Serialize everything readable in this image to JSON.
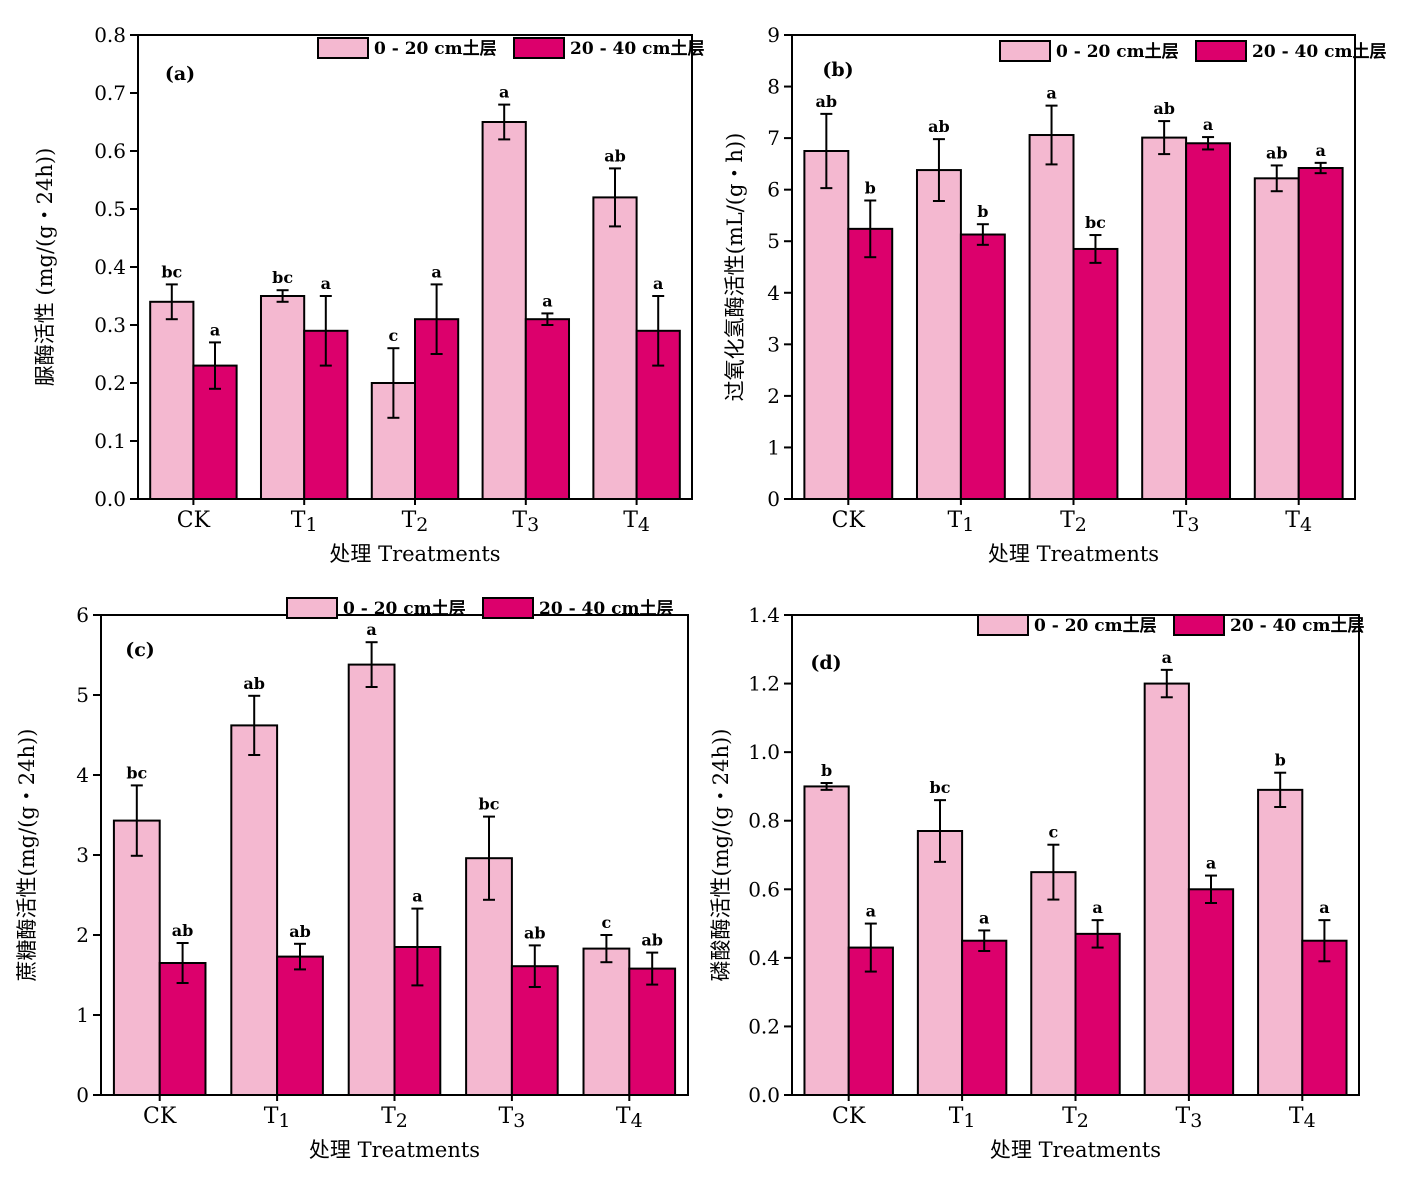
{
  "colors": {
    "series_0_20": "#F4B8D0",
    "series_20_40": "#DC006C"
  },
  "chart_data": [
    {
      "type": "bar",
      "panel_label": "(a)",
      "categories": [
        "CK",
        "T1",
        "T2",
        "T3",
        "T4"
      ],
      "xlabel": "处理  Treatments",
      "ylabel": "脲酶活性 (mg/(g・24h))",
      "ylim": [
        0,
        0.8
      ],
      "yticks": [
        "0.0",
        "0.1",
        "0.2",
        "0.3",
        "0.4",
        "0.5",
        "0.6",
        "0.7",
        "0.8"
      ],
      "legend_position": "top-right",
      "series": [
        {
          "name": "0 - 20 cm土层",
          "values": [
            0.34,
            0.35,
            0.2,
            0.65,
            0.52
          ],
          "errors": [
            0.03,
            0.01,
            0.06,
            0.03,
            0.05
          ],
          "labels": [
            "bc",
            "bc",
            "c",
            "a",
            "ab"
          ]
        },
        {
          "name": "20 - 40 cm土层",
          "values": [
            0.23,
            0.29,
            0.31,
            0.31,
            0.29
          ],
          "errors": [
            0.04,
            0.06,
            0.06,
            0.01,
            0.06
          ],
          "labels": [
            "a",
            "a",
            "a",
            "a",
            "a"
          ]
        }
      ]
    },
    {
      "type": "bar",
      "panel_label": "(b)",
      "categories": [
        "CK",
        "T1",
        "T2",
        "T3",
        "T4"
      ],
      "xlabel": "处理  Treatments",
      "ylabel": "过氧化氢酶活性(mL/(g・h))",
      "ylim": [
        0,
        9
      ],
      "yticks": [
        "0",
        "1",
        "2",
        "3",
        "4",
        "5",
        "6",
        "7",
        "8",
        "9"
      ],
      "legend_position": "top-right",
      "series": [
        {
          "name": "0 - 20 cm土层",
          "values": [
            6.75,
            6.38,
            7.06,
            7.01,
            6.22
          ],
          "errors": [
            0.72,
            0.6,
            0.57,
            0.32,
            0.25
          ],
          "labels": [
            "ab",
            "ab",
            "a",
            "ab",
            "ab"
          ]
        },
        {
          "name": "20 - 40 cm土层",
          "values": [
            5.24,
            5.13,
            4.85,
            6.9,
            6.42
          ],
          "errors": [
            0.55,
            0.2,
            0.27,
            0.12,
            0.1
          ],
          "labels": [
            "b",
            "b",
            "bc",
            "a",
            "a"
          ]
        }
      ]
    },
    {
      "type": "bar",
      "panel_label": "(c)",
      "categories": [
        "CK",
        "T1",
        "T2",
        "T3",
        "T4"
      ],
      "xlabel": "处理  Treatments",
      "ylabel": "蔗糖酶活性(mg/(g・24h))",
      "ylim": [
        0,
        6
      ],
      "yticks": [
        "0",
        "1",
        "2",
        "3",
        "4",
        "5",
        "6"
      ],
      "legend_position": "top-right",
      "series": [
        {
          "name": "0 - 20 cm土层",
          "values": [
            3.43,
            4.62,
            5.38,
            2.96,
            1.83
          ],
          "errors": [
            0.44,
            0.37,
            0.28,
            0.52,
            0.17
          ],
          "labels": [
            "bc",
            "ab",
            "a",
            "bc",
            "c"
          ]
        },
        {
          "name": "20 - 40 cm土层",
          "values": [
            1.65,
            1.73,
            1.85,
            1.61,
            1.58
          ],
          "errors": [
            0.25,
            0.16,
            0.48,
            0.26,
            0.2
          ],
          "labels": [
            "ab",
            "ab",
            "a",
            "ab",
            "ab"
          ]
        }
      ]
    },
    {
      "type": "bar",
      "panel_label": "(d)",
      "categories": [
        "CK",
        "T1",
        "T2",
        "T3",
        "T4"
      ],
      "xlabel": "处理  Treatments",
      "ylabel": "磷酸酶活性(mg/(g・24h))",
      "ylim": [
        0,
        1.4
      ],
      "yticks": [
        "0.0",
        "0.2",
        "0.4",
        "0.6",
        "0.8",
        "1.0",
        "1.2",
        "1.4"
      ],
      "legend_position": "top-right",
      "series": [
        {
          "name": "0 - 20 cm土层",
          "values": [
            0.9,
            0.77,
            0.65,
            1.2,
            0.89
          ],
          "errors": [
            0.01,
            0.09,
            0.08,
            0.04,
            0.05
          ],
          "labels": [
            "b",
            "bc",
            "c",
            "a",
            "b"
          ]
        },
        {
          "name": "20 - 40 cm土层",
          "values": [
            0.43,
            0.45,
            0.47,
            0.6,
            0.45
          ],
          "errors": [
            0.07,
            0.03,
            0.04,
            0.04,
            0.06
          ],
          "labels": [
            "a",
            "a",
            "a",
            "a",
            "a"
          ]
        }
      ]
    }
  ]
}
